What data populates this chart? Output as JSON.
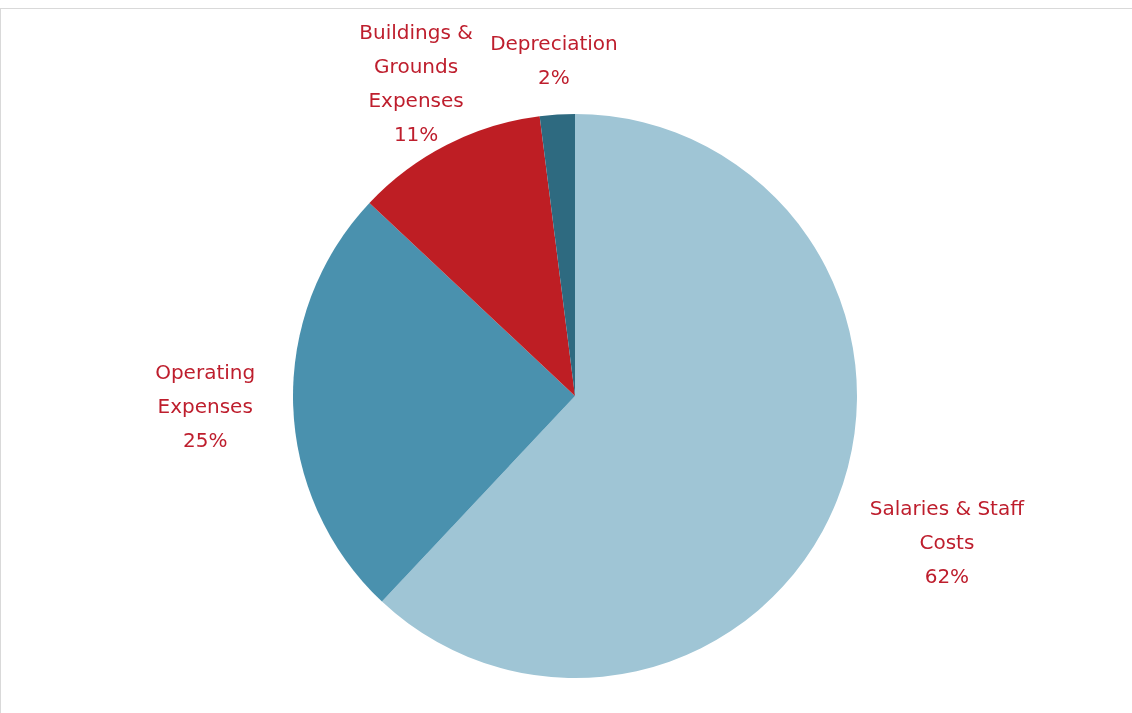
{
  "chart_data": {
    "type": "pie",
    "categories": [
      "Salaries & Staff Costs",
      "Operating Expenses",
      "Buildings & Grounds Expenses",
      "Depreciation"
    ],
    "values": [
      62,
      25,
      11,
      2
    ],
    "colors": [
      "#9fc5d5",
      "#4a91ae",
      "#be1e24",
      "#2e6a80"
    ],
    "value_labels": [
      "62%",
      "25%",
      "11%",
      "2%"
    ]
  }
}
